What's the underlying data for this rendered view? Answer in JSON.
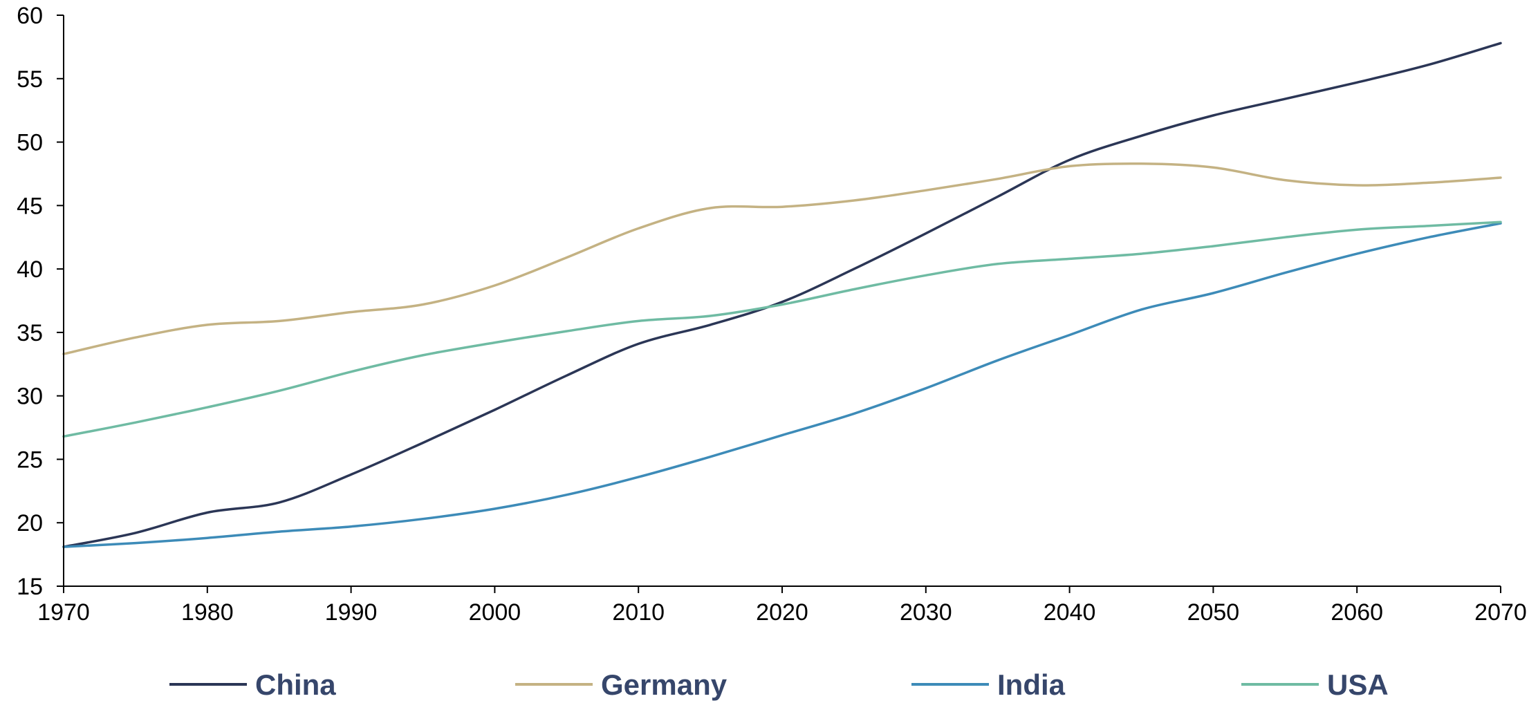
{
  "chart_data": {
    "type": "line",
    "title": "",
    "xlabel": "",
    "ylabel": "",
    "xlim": [
      1970,
      2070
    ],
    "ylim": [
      15,
      60
    ],
    "x_ticks": [
      1970,
      1980,
      1990,
      2000,
      2010,
      2020,
      2030,
      2040,
      2050,
      2060,
      2070
    ],
    "y_ticks": [
      15,
      20,
      25,
      30,
      35,
      40,
      45,
      50,
      55,
      60
    ],
    "grid": false,
    "legend_position": "bottom",
    "x": [
      1970,
      1975,
      1980,
      1985,
      1990,
      1995,
      2000,
      2005,
      2010,
      2015,
      2020,
      2025,
      2030,
      2035,
      2040,
      2045,
      2050,
      2055,
      2060,
      2065,
      2070
    ],
    "series": [
      {
        "name": "China",
        "color": "#2b3656",
        "values": [
          18.1,
          19.2,
          20.8,
          21.6,
          23.8,
          26.3,
          28.9,
          31.6,
          34.1,
          35.6,
          37.4,
          40.0,
          42.8,
          45.7,
          48.6,
          50.5,
          52.1,
          53.4,
          54.7,
          56.1,
          57.8
        ]
      },
      {
        "name": "Germany",
        "color": "#c4b283",
        "values": [
          33.3,
          34.6,
          35.6,
          35.9,
          36.6,
          37.2,
          38.7,
          40.9,
          43.2,
          44.8,
          44.9,
          45.4,
          46.2,
          47.1,
          48.1,
          48.3,
          48.0,
          47.0,
          46.6,
          46.8,
          47.2
        ]
      },
      {
        "name": "India",
        "color": "#3d8bb8",
        "values": [
          18.1,
          18.4,
          18.8,
          19.3,
          19.7,
          20.3,
          21.1,
          22.2,
          23.6,
          25.2,
          26.9,
          28.6,
          30.6,
          32.8,
          34.8,
          36.8,
          38.1,
          39.7,
          41.2,
          42.5,
          43.6
        ]
      },
      {
        "name": "USA",
        "color": "#6fbba3",
        "values": [
          26.8,
          27.9,
          29.1,
          30.4,
          31.9,
          33.2,
          34.2,
          35.1,
          35.9,
          36.3,
          37.2,
          38.4,
          39.5,
          40.4,
          40.8,
          41.2,
          41.8,
          42.5,
          43.1,
          43.4,
          43.7
        ]
      }
    ]
  }
}
